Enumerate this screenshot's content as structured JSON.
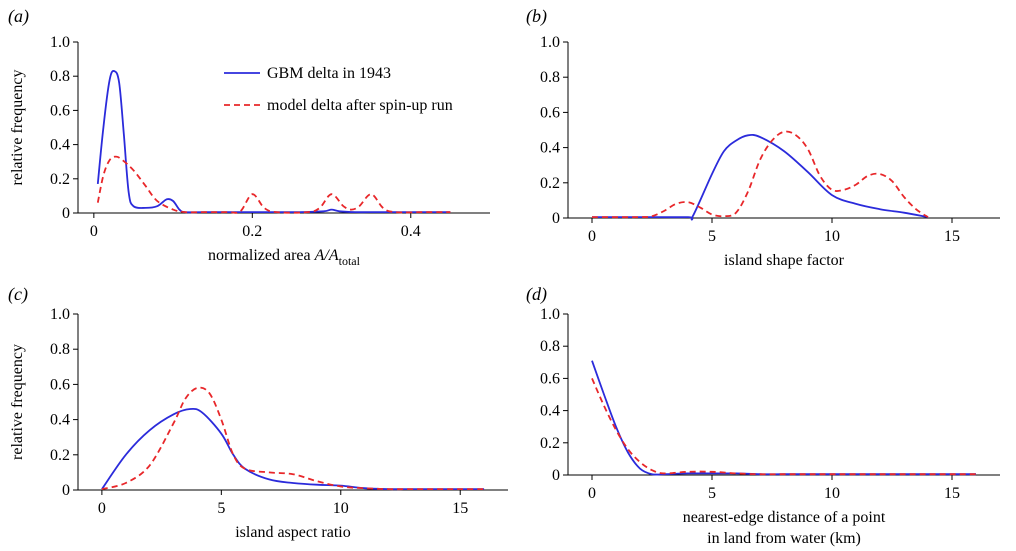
{
  "legend": {
    "series_a": "GBM delta in 1943",
    "series_b": "model delta after spin-up run"
  },
  "colors": {
    "series_a": "#2b2bdb",
    "series_b": "#e8272a"
  },
  "chart_data": [
    {
      "panel_label": "(a)",
      "type": "line",
      "xlabel": "normalized area A/A",
      "xlabel_sub": "total",
      "ylabel": "relative frequency",
      "xlim": [
        -0.02,
        0.5
      ],
      "ylim": [
        0,
        1.0
      ],
      "xticks": [
        0,
        0.2,
        0.4
      ],
      "xtick_labels": [
        "0",
        "0.2",
        "0.4"
      ],
      "yticks": [
        0,
        0.2,
        0.4,
        0.6,
        0.8,
        1.0
      ],
      "ytick_labels": [
        "0",
        "0.2",
        "0.4",
        "0.6",
        "0.8",
        "1.0"
      ],
      "series": [
        {
          "name": "GBM delta in 1943",
          "style": "solid",
          "x": [
            0.005,
            0.012,
            0.02,
            0.026,
            0.032,
            0.038,
            0.044,
            0.05,
            0.065,
            0.08,
            0.092,
            0.1,
            0.108,
            0.115,
            0.14,
            0.2,
            0.26,
            0.29,
            0.3,
            0.31,
            0.33,
            0.36,
            0.4,
            0.45
          ],
          "y": [
            0.17,
            0.5,
            0.78,
            0.83,
            0.76,
            0.45,
            0.12,
            0.04,
            0.03,
            0.04,
            0.08,
            0.07,
            0.02,
            0.005,
            0.005,
            0.005,
            0.005,
            0.01,
            0.02,
            0.01,
            0.005,
            0.005,
            0.005,
            0.005
          ]
        },
        {
          "name": "model delta after spin-up run",
          "style": "dashed",
          "x": [
            0.005,
            0.012,
            0.02,
            0.028,
            0.036,
            0.05,
            0.065,
            0.08,
            0.1,
            0.115,
            0.14,
            0.17,
            0.185,
            0.2,
            0.215,
            0.23,
            0.27,
            0.285,
            0.3,
            0.315,
            0.325,
            0.335,
            0.35,
            0.365,
            0.38,
            0.42,
            0.45
          ],
          "y": [
            0.06,
            0.22,
            0.31,
            0.33,
            0.31,
            0.25,
            0.16,
            0.07,
            0.02,
            0.005,
            0.005,
            0.005,
            0.01,
            0.11,
            0.03,
            0.005,
            0.005,
            0.03,
            0.11,
            0.04,
            0.02,
            0.04,
            0.11,
            0.03,
            0.005,
            0.005,
            0.005
          ]
        }
      ]
    },
    {
      "panel_label": "(b)",
      "type": "line",
      "xlabel": "island shape factor",
      "ylabel": "",
      "xlim": [
        -1,
        17
      ],
      "ylim": [
        0,
        1.0
      ],
      "xticks": [
        0,
        5,
        10,
        15
      ],
      "xtick_labels": [
        "0",
        "5",
        "10",
        "15"
      ],
      "yticks": [
        0,
        0.2,
        0.4,
        0.6,
        0.8,
        1.0
      ],
      "ytick_labels": [
        "0",
        "0.2",
        "0.4",
        "0.6",
        "0.8",
        "1.0"
      ],
      "series": [
        {
          "name": "GBM delta in 1943",
          "style": "solid",
          "x": [
            0,
            2,
            4,
            4.2,
            5,
            5.5,
            6,
            6.5,
            7,
            8,
            9,
            10,
            11,
            12,
            13,
            14
          ],
          "y": [
            0.005,
            0.005,
            0.005,
            0.01,
            0.25,
            0.38,
            0.44,
            0.47,
            0.46,
            0.38,
            0.26,
            0.13,
            0.08,
            0.05,
            0.03,
            0.005
          ]
        },
        {
          "name": "model delta after spin-up run",
          "style": "dashed",
          "x": [
            0,
            2,
            2.5,
            3,
            3.5,
            4,
            4.5,
            5,
            5.5,
            6,
            6.5,
            7,
            7.5,
            8,
            8.5,
            9,
            9.5,
            10,
            10.5,
            11,
            11.5,
            12,
            12.5,
            13,
            13.5,
            14
          ],
          "y": [
            0.005,
            0.005,
            0.01,
            0.04,
            0.08,
            0.09,
            0.06,
            0.02,
            0.01,
            0.03,
            0.15,
            0.33,
            0.44,
            0.49,
            0.47,
            0.39,
            0.24,
            0.16,
            0.16,
            0.19,
            0.24,
            0.25,
            0.21,
            0.12,
            0.05,
            0.005
          ]
        }
      ]
    },
    {
      "panel_label": "(c)",
      "type": "line",
      "xlabel": "island aspect ratio",
      "ylabel": "relative frequency",
      "xlim": [
        -1,
        17
      ],
      "ylim": [
        0,
        1.0
      ],
      "xticks": [
        0,
        5,
        10,
        15
      ],
      "xtick_labels": [
        "0",
        "5",
        "10",
        "15"
      ],
      "yticks": [
        0,
        0.2,
        0.4,
        0.6,
        0.8,
        1.0
      ],
      "ytick_labels": [
        "0",
        "0.2",
        "0.4",
        "0.6",
        "0.8",
        "1.0"
      ],
      "series": [
        {
          "name": "GBM delta in 1943",
          "style": "solid",
          "x": [
            0,
            1,
            2,
            3,
            3.7,
            4.2,
            5,
            5.5,
            6,
            7,
            8,
            9,
            10,
            11,
            12,
            13,
            14,
            15,
            16
          ],
          "y": [
            0.005,
            0.2,
            0.34,
            0.43,
            0.46,
            0.44,
            0.32,
            0.2,
            0.12,
            0.06,
            0.04,
            0.03,
            0.025,
            0.01,
            0.005,
            0.005,
            0.005,
            0.005,
            0.005
          ]
        },
        {
          "name": "model delta after spin-up run",
          "style": "dashed",
          "x": [
            0,
            1,
            2,
            3,
            3.5,
            4,
            4.5,
            5,
            5.5,
            6,
            7,
            8,
            9,
            10,
            11,
            12,
            13,
            14,
            15,
            16
          ],
          "y": [
            0.005,
            0.04,
            0.14,
            0.38,
            0.52,
            0.58,
            0.55,
            0.4,
            0.2,
            0.12,
            0.1,
            0.09,
            0.05,
            0.02,
            0.01,
            0.005,
            0.005,
            0.005,
            0.005,
            0.005
          ]
        }
      ]
    },
    {
      "panel_label": "(d)",
      "type": "line",
      "xlabel": "nearest-edge distance of a point",
      "xlabel_line2": "in land from water (km)",
      "ylabel": "",
      "xlim": [
        -1,
        17
      ],
      "ylim": [
        0,
        1.0
      ],
      "xticks": [
        0,
        5,
        10,
        15
      ],
      "xtick_labels": [
        "0",
        "5",
        "10",
        "15"
      ],
      "yticks": [
        0,
        0.2,
        0.4,
        0.6,
        0.8,
        1.0
      ],
      "ytick_labels": [
        "0",
        "0.2",
        "0.4",
        "0.6",
        "0.8",
        "1.0"
      ],
      "series": [
        {
          "name": "GBM delta in 1943",
          "style": "solid",
          "x": [
            0,
            0.5,
            1,
            1.5,
            2,
            2.5,
            3,
            4,
            5,
            6,
            7,
            8,
            9,
            10,
            12,
            14,
            16
          ],
          "y": [
            0.71,
            0.5,
            0.3,
            0.14,
            0.04,
            0.005,
            0.005,
            0.01,
            0.01,
            0.01,
            0.005,
            0.005,
            0.005,
            0.005,
            0.005,
            0.005,
            0.005
          ]
        },
        {
          "name": "model delta after spin-up run",
          "style": "dashed",
          "x": [
            0,
            0.5,
            1,
            1.5,
            2,
            2.5,
            3,
            4,
            5,
            6,
            7,
            8,
            9,
            10,
            12,
            14,
            16
          ],
          "y": [
            0.6,
            0.43,
            0.28,
            0.16,
            0.08,
            0.03,
            0.01,
            0.02,
            0.02,
            0.01,
            0.005,
            0.005,
            0.005,
            0.005,
            0.005,
            0.005,
            0.005
          ]
        }
      ]
    }
  ]
}
